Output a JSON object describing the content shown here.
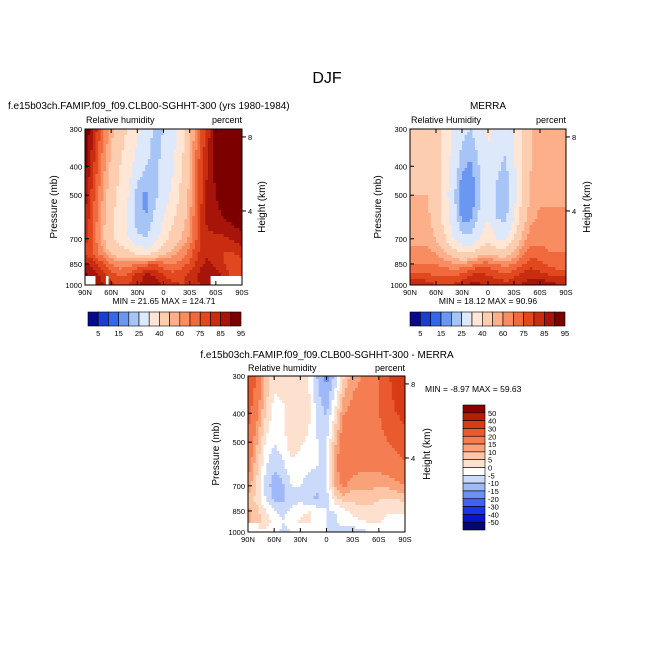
{
  "figure": {
    "title": "DJF"
  },
  "colors": {
    "abs_palette": [
      "#08088a",
      "#1a3fd0",
      "#3568e8",
      "#6b97f0",
      "#a7c4f6",
      "#dde8fb",
      "#ffe6d5",
      "#fdcdb0",
      "#fcaf89",
      "#f98d62",
      "#f06a3e",
      "#e2481f",
      "#c92d10",
      "#a6140a",
      "#7d0000"
    ],
    "diff_palette": [
      "#070773",
      "#0a14c8",
      "#1a35e6",
      "#3f63f0",
      "#6c90f5",
      "#9fb9f8",
      "#cbdafb",
      "#ffffff",
      "#fde0cd",
      "#fcc6a7",
      "#f9a27a",
      "#f47e52",
      "#ea5a2f",
      "#d93b16",
      "#b61e07",
      "#8a0000"
    ]
  },
  "chart_data": [
    {
      "id": "model",
      "type": "heatmap",
      "title": "f.e15b03ch.FAMIP.f09_f09.CLB00-SGHHT-300 (yrs 1980-1984)",
      "left_label": "Relative humidity",
      "right_label": "percent",
      "xlabel": "",
      "ylabel": "Pressure (mb)",
      "y2label": "Height (km)",
      "xticks": [
        "90N",
        "60N",
        "30N",
        "0",
        "30S",
        "60S",
        "90S"
      ],
      "xticks_values": [
        90,
        60,
        30,
        0,
        -30,
        -60,
        -90
      ],
      "xlim": [
        90,
        -90
      ],
      "yticks": [
        "300",
        "400",
        "500",
        "700",
        "850",
        "1000"
      ],
      "yticks_values": [
        300,
        400,
        500,
        700,
        850,
        1000
      ],
      "ylim": [
        300,
        1000
      ],
      "y2ticks": [
        "8",
        "4"
      ],
      "y2ticks_values": [
        8,
        4
      ],
      "stats": "MIN =   21.65   MAX =  124.71",
      "min": 21.65,
      "max": 124.71,
      "lat": [
        90,
        80,
        70,
        60,
        50,
        40,
        30,
        20,
        10,
        0,
        -10,
        -20,
        -30,
        -40,
        -50,
        -60,
        -70,
        -80,
        -90
      ],
      "plev": [
        300,
        400,
        500,
        600,
        700,
        775,
        850,
        925,
        1000
      ],
      "values": [
        [
          95,
          85,
          72,
          62,
          55,
          48,
          42,
          35,
          28,
          30,
          34,
          45,
          58,
          72,
          82,
          92,
          100,
          105,
          110
        ],
        [
          92,
          80,
          68,
          58,
          50,
          45,
          35,
          30,
          28,
          32,
          38,
          48,
          60,
          75,
          85,
          92,
          98,
          102,
          105
        ],
        [
          88,
          76,
          65,
          55,
          47,
          40,
          26,
          24,
          28,
          35,
          42,
          52,
          62,
          76,
          86,
          90,
          94,
          97,
          100
        ],
        [
          85,
          74,
          63,
          52,
          45,
          38,
          26,
          25,
          32,
          40,
          48,
          55,
          64,
          78,
          86,
          88,
          90,
          92,
          94
        ],
        [
          82,
          73,
          62,
          52,
          46,
          40,
          32,
          30,
          36,
          46,
          55,
          60,
          66,
          78,
          84,
          84,
          84,
          86,
          88
        ],
        [
          80,
          74,
          66,
          58,
          54,
          52,
          46,
          44,
          48,
          56,
          62,
          66,
          72,
          80,
          84,
          82,
          80,
          80,
          82
        ],
        [
          86,
          82,
          76,
          70,
          67,
          67,
          70,
          73,
          75,
          72,
          70,
          72,
          76,
          82,
          86,
          84,
          80,
          78,
          78
        ],
        [
          92,
          88,
          83,
          78,
          74,
          76,
          82,
          86,
          85,
          80,
          77,
          78,
          82,
          86,
          90,
          88,
          82,
          78,
          78
        ],
        [
          92,
          90,
          86,
          82,
          79,
          80,
          84,
          88,
          88,
          84,
          82,
          80,
          80,
          84,
          88,
          90,
          86,
          82,
          82
        ]
      ],
      "missing": [
        [
          "lat",
          90,
          78,
          "plev",
          925,
          1000
        ],
        [
          "lat",
          66,
          62,
          "plev",
          925,
          1000
        ],
        [
          "lat",
          -55,
          -90,
          "plev",
          925,
          1000
        ]
      ]
    },
    {
      "id": "obs",
      "type": "heatmap",
      "title": "MERRA",
      "left_label": "Relative Humidity",
      "right_label": "percent",
      "xlabel": "",
      "ylabel": "Pressure (mb)",
      "y2label": "Height (km)",
      "xticks": [
        "90N",
        "60N",
        "30N",
        "0",
        "30S",
        "60S",
        "90S"
      ],
      "xticks_values": [
        90,
        60,
        30,
        0,
        -30,
        -60,
        -90
      ],
      "xlim": [
        90,
        -90
      ],
      "yticks": [
        "300",
        "400",
        "500",
        "700",
        "850",
        "1000"
      ],
      "yticks_values": [
        300,
        400,
        500,
        700,
        850,
        1000
      ],
      "ylim": [
        300,
        1000
      ],
      "y2ticks": [
        "8",
        "4"
      ],
      "y2ticks_values": [
        8,
        4
      ],
      "stats": "MIN =   18.12   MAX =   90.96",
      "min": 18.12,
      "max": 90.96,
      "lat": [
        90,
        80,
        70,
        60,
        50,
        40,
        30,
        20,
        10,
        0,
        -10,
        -20,
        -30,
        -40,
        -50,
        -60,
        -70,
        -80,
        -90
      ],
      "plev": [
        300,
        400,
        500,
        600,
        700,
        775,
        850,
        925,
        1000
      ],
      "values": [
        [
          55,
          56,
          58,
          55,
          48,
          38,
          32,
          30,
          34,
          42,
          38,
          35,
          40,
          52,
          60,
          62,
          62,
          60,
          60
        ],
        [
          58,
          58,
          58,
          55,
          46,
          36,
          26,
          24,
          30,
          38,
          32,
          28,
          38,
          52,
          60,
          62,
          62,
          62,
          62
        ],
        [
          60,
          60,
          60,
          55,
          44,
          32,
          20,
          20,
          28,
          36,
          28,
          25,
          36,
          52,
          62,
          64,
          64,
          64,
          64
        ],
        [
          62,
          62,
          62,
          56,
          46,
          34,
          24,
          24,
          32,
          40,
          30,
          28,
          40,
          56,
          64,
          66,
          66,
          66,
          66
        ],
        [
          64,
          64,
          64,
          60,
          52,
          40,
          32,
          32,
          40,
          48,
          40,
          38,
          50,
          62,
          68,
          68,
          68,
          68,
          68
        ],
        [
          66,
          66,
          66,
          64,
          60,
          54,
          48,
          48,
          54,
          58,
          54,
          54,
          60,
          68,
          72,
          72,
          70,
          70,
          70
        ],
        [
          70,
          70,
          70,
          70,
          68,
          66,
          66,
          68,
          72,
          72,
          70,
          68,
          70,
          74,
          78,
          76,
          74,
          72,
          72
        ],
        [
          76,
          76,
          76,
          74,
          74,
          74,
          76,
          80,
          82,
          80,
          78,
          76,
          78,
          82,
          84,
          82,
          80,
          78,
          78
        ],
        [
          84,
          86,
          82,
          80,
          80,
          80,
          84,
          86,
          86,
          84,
          84,
          82,
          84,
          86,
          88,
          90,
          88,
          86,
          86
        ]
      ]
    },
    {
      "id": "diff",
      "type": "heatmap",
      "title": "f.e15b03ch.FAMIP.f09_f09.CLB00-SGHHT-300  -  MERRA",
      "left_label": "Relative humidity",
      "right_label": "percent",
      "xlabel": "",
      "ylabel": "Pressure (mb)",
      "y2label": "Height (km)",
      "xticks": [
        "90N",
        "60N",
        "30N",
        "0",
        "30S",
        "60S",
        "90S"
      ],
      "xticks_values": [
        90,
        60,
        30,
        0,
        -30,
        -60,
        -90
      ],
      "xlim": [
        90,
        -90
      ],
      "yticks": [
        "300",
        "400",
        "500",
        "700",
        "850",
        "1000"
      ],
      "yticks_values": [
        300,
        400,
        500,
        700,
        850,
        1000
      ],
      "ylim": [
        300,
        1000
      ],
      "y2ticks": [
        "8",
        "4"
      ],
      "y2ticks_values": [
        8,
        4
      ],
      "stats": "MIN =   -8.97   MAX =   59.63",
      "min": -8.97,
      "max": 59.63,
      "lat": [
        90,
        80,
        70,
        60,
        50,
        40,
        30,
        20,
        10,
        0,
        -10,
        -20,
        -30,
        -40,
        -50,
        -60,
        -70,
        -80,
        -90
      ],
      "plev": [
        300,
        400,
        500,
        600,
        700,
        775,
        850,
        925,
        1000
      ],
      "values": [
        [
          40,
          30,
          14,
          7,
          7,
          10,
          10,
          5,
          -6,
          -12,
          -4,
          10,
          18,
          20,
          22,
          30,
          38,
          45,
          50
        ],
        [
          34,
          22,
          10,
          3,
          4,
          9,
          9,
          6,
          -2,
          -6,
          6,
          20,
          22,
          23,
          25,
          30,
          36,
          40,
          43
        ],
        [
          28,
          16,
          5,
          0,
          3,
          8,
          6,
          4,
          0,
          -1,
          14,
          27,
          26,
          24,
          24,
          26,
          30,
          33,
          36
        ],
        [
          23,
          12,
          1,
          -4,
          -1,
          4,
          2,
          1,
          0,
          0,
          18,
          27,
          24,
          22,
          22,
          22,
          24,
          26,
          28
        ],
        [
          18,
          9,
          -2,
          -8,
          -6,
          0,
          0,
          -2,
          -4,
          -2,
          15,
          22,
          16,
          16,
          16,
          16,
          16,
          18,
          20
        ],
        [
          14,
          8,
          0,
          -6,
          -6,
          -2,
          -2,
          -4,
          -6,
          -2,
          8,
          12,
          12,
          12,
          12,
          10,
          10,
          10,
          12
        ],
        [
          16,
          12,
          6,
          0,
          -1,
          1,
          4,
          5,
          3,
          0,
          0,
          4,
          6,
          8,
          8,
          8,
          6,
          6,
          6
        ],
        [
          16,
          12,
          7,
          4,
          0,
          2,
          6,
          6,
          3,
          0,
          -1,
          2,
          4,
          4,
          6,
          6,
          2,
          0,
          0
        ],
        [
          8,
          4,
          4,
          2,
          -1,
          0,
          0,
          2,
          2,
          0,
          -2,
          -2,
          -4,
          -2,
          0,
          0,
          -2,
          -4,
          -4
        ]
      ],
      "missing": [
        [
          "lat",
          90,
          78,
          "plev",
          925,
          1000
        ],
        [
          "lat",
          66,
          62,
          "plev",
          925,
          1000
        ],
        [
          "lat",
          -55,
          -90,
          "plev",
          925,
          1000
        ]
      ]
    }
  ],
  "colorbars": {
    "abs": {
      "orientation": "horizontal",
      "levels": [
        5,
        10,
        15,
        20,
        25,
        30,
        40,
        50,
        60,
        65,
        70,
        75,
        80,
        85,
        90,
        95
      ],
      "labels": [
        "5",
        "15",
        "25",
        "40",
        "60",
        "75",
        "85",
        "95"
      ]
    },
    "diff": {
      "orientation": "vertical",
      "levels": [
        -50,
        -40,
        -30,
        -20,
        -15,
        -10,
        -5,
        0,
        5,
        10,
        15,
        20,
        30,
        40,
        50
      ],
      "labels": [
        "50",
        "40",
        "30",
        "20",
        "15",
        "10",
        "5",
        "0",
        "-5",
        "-10",
        "-15",
        "-20",
        "-30",
        "-40",
        "-50"
      ]
    }
  }
}
